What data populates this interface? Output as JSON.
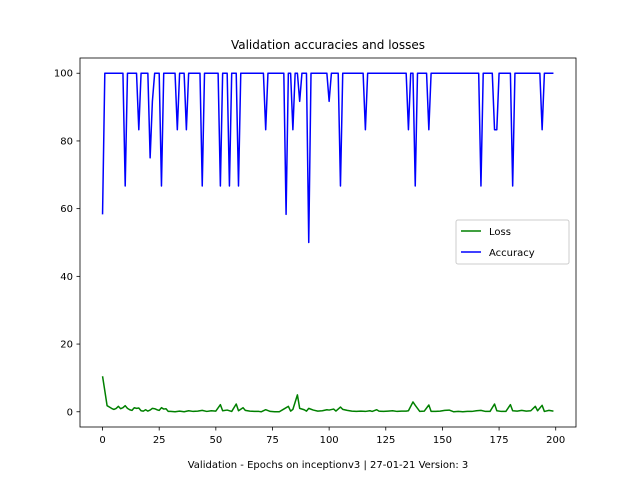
{
  "chart_data": {
    "type": "line",
    "title": "Validation accuracies and losses",
    "xlabel": "Validation - Epochs on inceptionv3 | 27-01-21 Version: 3",
    "ylabel": "",
    "xlim": [
      -9.95,
      208.95
    ],
    "ylim": [
      -4.5,
      104.5
    ],
    "xticks": [
      0,
      25,
      50,
      75,
      100,
      125,
      150,
      175,
      200
    ],
    "yticks": [
      0,
      20,
      40,
      60,
      80,
      100
    ],
    "grid": false,
    "legend_position": "center-right",
    "series": [
      {
        "name": "Loss",
        "color": "#008000",
        "points": [
          [
            0,
            10.5
          ],
          [
            1,
            6.2
          ],
          [
            2,
            1.8
          ],
          [
            3,
            1.4
          ],
          [
            4,
            1.0
          ],
          [
            5,
            0.7
          ],
          [
            6,
            1.0
          ],
          [
            7,
            1.6
          ],
          [
            8,
            0.9
          ],
          [
            9,
            1.2
          ],
          [
            10,
            1.8
          ],
          [
            11,
            1.0
          ],
          [
            12,
            0.6
          ],
          [
            13,
            0.4
          ],
          [
            14,
            1.2
          ],
          [
            15,
            1.0
          ],
          [
            16,
            1.1
          ],
          [
            17,
            0.3
          ],
          [
            18,
            0.2
          ],
          [
            19,
            0.6
          ],
          [
            20,
            0.2
          ],
          [
            21,
            0.5
          ],
          [
            22,
            1.0
          ],
          [
            23,
            0.9
          ],
          [
            24,
            0.6
          ],
          [
            25,
            0.4
          ],
          [
            26,
            1.2
          ],
          [
            27,
            0.8
          ],
          [
            28,
            0.9
          ],
          [
            29,
            0.1
          ],
          [
            30,
            0.1
          ],
          [
            32,
            0.0
          ],
          [
            34,
            0.2
          ],
          [
            36,
            0.0
          ],
          [
            38,
            0.3
          ],
          [
            40,
            0.1
          ],
          [
            42,
            0.2
          ],
          [
            44,
            0.4
          ],
          [
            46,
            0.1
          ],
          [
            48,
            0.3
          ],
          [
            50,
            0.2
          ],
          [
            52,
            2.1
          ],
          [
            53,
            0.3
          ],
          [
            55,
            0.5
          ],
          [
            57,
            0.1
          ],
          [
            59,
            2.3
          ],
          [
            60,
            0.3
          ],
          [
            62,
            1.2
          ],
          [
            63,
            0.4
          ],
          [
            65,
            0.2
          ],
          [
            67,
            0.1
          ],
          [
            69,
            0.1
          ],
          [
            70,
            0.0
          ],
          [
            72,
            0.6
          ],
          [
            74,
            0.1
          ],
          [
            76,
            0.0
          ],
          [
            78,
            0.0
          ],
          [
            80,
            0.8
          ],
          [
            82,
            1.6
          ],
          [
            83,
            0.2
          ],
          [
            84,
            0.7
          ],
          [
            86,
            5.0
          ],
          [
            87,
            1.0
          ],
          [
            89,
            0.6
          ],
          [
            90,
            0.2
          ],
          [
            91,
            1.0
          ],
          [
            93,
            0.5
          ],
          [
            95,
            0.2
          ],
          [
            97,
            0.3
          ],
          [
            99,
            0.6
          ],
          [
            100,
            0.5
          ],
          [
            102,
            0.8
          ],
          [
            103,
            0.2
          ],
          [
            105,
            1.4
          ],
          [
            106,
            0.7
          ],
          [
            108,
            0.4
          ],
          [
            110,
            0.2
          ],
          [
            112,
            0.1
          ],
          [
            114,
            0.2
          ],
          [
            116,
            0.1
          ],
          [
            118,
            0.3
          ],
          [
            119,
            0.1
          ],
          [
            121,
            0.6
          ],
          [
            122,
            0.2
          ],
          [
            124,
            0.1
          ],
          [
            126,
            0.2
          ],
          [
            128,
            0.3
          ],
          [
            130,
            0.1
          ],
          [
            132,
            0.2
          ],
          [
            134,
            0.2
          ],
          [
            135,
            0.3
          ],
          [
            137,
            2.9
          ],
          [
            138,
            1.9
          ],
          [
            140,
            0.1
          ],
          [
            142,
            0.2
          ],
          [
            144,
            2.0
          ],
          [
            145,
            0.1
          ],
          [
            147,
            0.1
          ],
          [
            149,
            0.2
          ],
          [
            151,
            0.4
          ],
          [
            153,
            0.5
          ],
          [
            155,
            0.0
          ],
          [
            157,
            0.1
          ],
          [
            159,
            0.0
          ],
          [
            161,
            0.1
          ],
          [
            163,
            0.1
          ],
          [
            165,
            0.3
          ],
          [
            167,
            0.4
          ],
          [
            169,
            0.1
          ],
          [
            171,
            0.1
          ],
          [
            173,
            2.3
          ],
          [
            174,
            0.3
          ],
          [
            176,
            0.1
          ],
          [
            178,
            0.1
          ],
          [
            180,
            2.1
          ],
          [
            181,
            0.3
          ],
          [
            183,
            0.2
          ],
          [
            185,
            0.4
          ],
          [
            187,
            0.2
          ],
          [
            189,
            0.3
          ],
          [
            191,
            1.6
          ],
          [
            192,
            0.3
          ],
          [
            194,
            1.9
          ],
          [
            195,
            0.1
          ],
          [
            197,
            0.4
          ],
          [
            199,
            0.2
          ]
        ]
      },
      {
        "name": "Accuracy",
        "color": "#0000ff",
        "points": [
          [
            0,
            58.3
          ],
          [
            1,
            100
          ],
          [
            2,
            100
          ],
          [
            3,
            100
          ],
          [
            4,
            100
          ],
          [
            5,
            100
          ],
          [
            6,
            100
          ],
          [
            7,
            100
          ],
          [
            8,
            100
          ],
          [
            9,
            100
          ],
          [
            10,
            66.7
          ],
          [
            11,
            100
          ],
          [
            12,
            100
          ],
          [
            13,
            100
          ],
          [
            14,
            100
          ],
          [
            15,
            100
          ],
          [
            16,
            83.3
          ],
          [
            17,
            100
          ],
          [
            18,
            100
          ],
          [
            19,
            100
          ],
          [
            20,
            100
          ],
          [
            21,
            75
          ],
          [
            22,
            91.7
          ],
          [
            23,
            100
          ],
          [
            24,
            100
          ],
          [
            25,
            100
          ],
          [
            26,
            66.7
          ],
          [
            27,
            100
          ],
          [
            28,
            100
          ],
          [
            29,
            100
          ],
          [
            30,
            100
          ],
          [
            31,
            100
          ],
          [
            32,
            100
          ],
          [
            33,
            83.3
          ],
          [
            34,
            100
          ],
          [
            35,
            100
          ],
          [
            36,
            100
          ],
          [
            37,
            83.3
          ],
          [
            38,
            100
          ],
          [
            39,
            100
          ],
          [
            40,
            100
          ],
          [
            41,
            100
          ],
          [
            42,
            100
          ],
          [
            43,
            100
          ],
          [
            44,
            66.7
          ],
          [
            45,
            100
          ],
          [
            46,
            100
          ],
          [
            47,
            100
          ],
          [
            48,
            100
          ],
          [
            49,
            100
          ],
          [
            50,
            100
          ],
          [
            51,
            100
          ],
          [
            52,
            66.7
          ],
          [
            53,
            100
          ],
          [
            54,
            100
          ],
          [
            55,
            100
          ],
          [
            56,
            66.7
          ],
          [
            57,
            100
          ],
          [
            58,
            100
          ],
          [
            59,
            100
          ],
          [
            60,
            66.7
          ],
          [
            61,
            100
          ],
          [
            62,
            100
          ],
          [
            63,
            100
          ],
          [
            64,
            100
          ],
          [
            65,
            100
          ],
          [
            66,
            100
          ],
          [
            67,
            100
          ],
          [
            68,
            100
          ],
          [
            69,
            100
          ],
          [
            70,
            100
          ],
          [
            71,
            100
          ],
          [
            72,
            83.3
          ],
          [
            73,
            100
          ],
          [
            74,
            100
          ],
          [
            75,
            100
          ],
          [
            76,
            100
          ],
          [
            77,
            100
          ],
          [
            78,
            100
          ],
          [
            79,
            100
          ],
          [
            80,
            100
          ],
          [
            81,
            58.3
          ],
          [
            82,
            100
          ],
          [
            83,
            100
          ],
          [
            84,
            83.3
          ],
          [
            85,
            100
          ],
          [
            86,
            100
          ],
          [
            87,
            91.7
          ],
          [
            88,
            100
          ],
          [
            89,
            100
          ],
          [
            90,
            100
          ],
          [
            91,
            50
          ],
          [
            92,
            100
          ],
          [
            93,
            100
          ],
          [
            94,
            100
          ],
          [
            95,
            100
          ],
          [
            96,
            100
          ],
          [
            97,
            100
          ],
          [
            98,
            100
          ],
          [
            99,
            100
          ],
          [
            100,
            91.7
          ],
          [
            101,
            100
          ],
          [
            102,
            100
          ],
          [
            103,
            100
          ],
          [
            104,
            100
          ],
          [
            105,
            66.7
          ],
          [
            106,
            100
          ],
          [
            107,
            100
          ],
          [
            108,
            100
          ],
          [
            109,
            100
          ],
          [
            110,
            100
          ],
          [
            111,
            100
          ],
          [
            112,
            100
          ],
          [
            113,
            100
          ],
          [
            114,
            100
          ],
          [
            115,
            100
          ],
          [
            116,
            83.3
          ],
          [
            117,
            100
          ],
          [
            118,
            100
          ],
          [
            119,
            100
          ],
          [
            120,
            100
          ],
          [
            121,
            100
          ],
          [
            122,
            100
          ],
          [
            123,
            100
          ],
          [
            124,
            100
          ],
          [
            125,
            100
          ],
          [
            126,
            100
          ],
          [
            127,
            100
          ],
          [
            128,
            100
          ],
          [
            129,
            100
          ],
          [
            130,
            100
          ],
          [
            131,
            100
          ],
          [
            132,
            100
          ],
          [
            133,
            100
          ],
          [
            134,
            100
          ],
          [
            135,
            83.3
          ],
          [
            136,
            100
          ],
          [
            137,
            100
          ],
          [
            138,
            66.7
          ],
          [
            139,
            100
          ],
          [
            140,
            100
          ],
          [
            141,
            100
          ],
          [
            142,
            100
          ],
          [
            143,
            100
          ],
          [
            144,
            83.3
          ],
          [
            145,
            100
          ],
          [
            146,
            100
          ],
          [
            147,
            100
          ],
          [
            148,
            100
          ],
          [
            149,
            100
          ],
          [
            150,
            100
          ],
          [
            151,
            100
          ],
          [
            152,
            100
          ],
          [
            153,
            100
          ],
          [
            154,
            100
          ],
          [
            155,
            100
          ],
          [
            156,
            100
          ],
          [
            157,
            100
          ],
          [
            158,
            100
          ],
          [
            159,
            100
          ],
          [
            160,
            100
          ],
          [
            161,
            100
          ],
          [
            162,
            100
          ],
          [
            163,
            100
          ],
          [
            164,
            100
          ],
          [
            165,
            100
          ],
          [
            166,
            100
          ],
          [
            167,
            66.7
          ],
          [
            168,
            100
          ],
          [
            169,
            100
          ],
          [
            170,
            100
          ],
          [
            171,
            100
          ],
          [
            172,
            100
          ],
          [
            173,
            83.3
          ],
          [
            174,
            83.3
          ],
          [
            175,
            100
          ],
          [
            176,
            100
          ],
          [
            177,
            100
          ],
          [
            178,
            100
          ],
          [
            179,
            100
          ],
          [
            180,
            100
          ],
          [
            181,
            66.7
          ],
          [
            182,
            100
          ],
          [
            183,
            100
          ],
          [
            184,
            100
          ],
          [
            185,
            100
          ],
          [
            186,
            100
          ],
          [
            187,
            100
          ],
          [
            188,
            100
          ],
          [
            189,
            100
          ],
          [
            190,
            100
          ],
          [
            191,
            100
          ],
          [
            192,
            100
          ],
          [
            193,
            100
          ],
          [
            194,
            83.3
          ],
          [
            195,
            100
          ],
          [
            196,
            100
          ],
          [
            197,
            100
          ],
          [
            198,
            100
          ],
          [
            199,
            100
          ]
        ]
      }
    ]
  }
}
